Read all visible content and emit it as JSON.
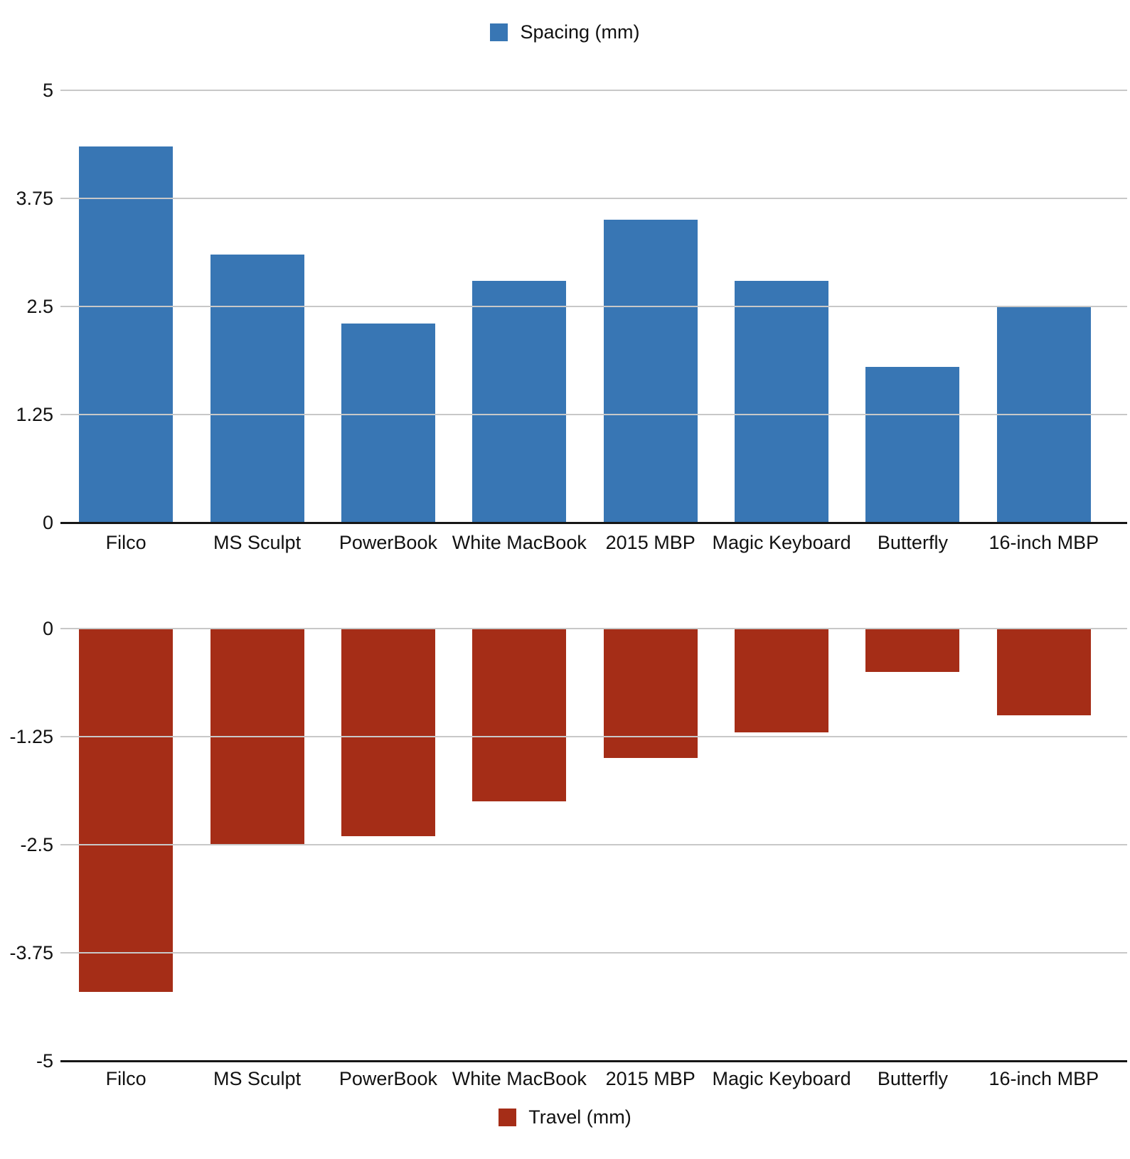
{
  "page": {
    "background": "#ffffff"
  },
  "chart_data": [
    {
      "type": "bar",
      "legend": "Spacing (mm)",
      "legend_position": "top",
      "color": "#3876B4",
      "categories": [
        "Filco",
        "MS Sculpt",
        "PowerBook",
        "White MacBook",
        "2015 MBP",
        "Magic Keyboard",
        "Butterfly",
        "16-inch MBP"
      ],
      "values": [
        4.35,
        3.1,
        2.3,
        2.8,
        3.5,
        2.8,
        1.8,
        2.5
      ],
      "title": "",
      "xlabel": "",
      "ylabel": "",
      "ylim": [
        0,
        5
      ],
      "grid": true,
      "axis_at": 0,
      "yticks": [
        {
          "label": "5",
          "value": 5
        },
        {
          "label": "3.75",
          "value": 3.75
        },
        {
          "label": "2.5",
          "value": 2.5
        },
        {
          "label": "1.25",
          "value": 1.25
        },
        {
          "label": "0",
          "value": 0
        }
      ]
    },
    {
      "type": "bar",
      "legend": "Travel (mm)",
      "legend_position": "bottom",
      "color": "#A52D17",
      "categories": [
        "Filco",
        "MS Sculpt",
        "PowerBook",
        "White MacBook",
        "2015 MBP",
        "Magic Keyboard",
        "Butterfly",
        "16-inch MBP"
      ],
      "values": [
        -4.2,
        -2.5,
        -2.4,
        -2.0,
        -1.5,
        -1.2,
        -0.5,
        -1.0
      ],
      "title": "",
      "xlabel": "",
      "ylabel": "",
      "ylim": [
        -5,
        0
      ],
      "grid": true,
      "axis_at": -5,
      "yticks": [
        {
          "label": "0",
          "value": 0
        },
        {
          "label": "-1.25",
          "value": -1.25
        },
        {
          "label": "-2.5",
          "value": -2.5
        },
        {
          "label": "-3.75",
          "value": -3.75
        },
        {
          "label": "-5",
          "value": -5
        }
      ]
    }
  ]
}
